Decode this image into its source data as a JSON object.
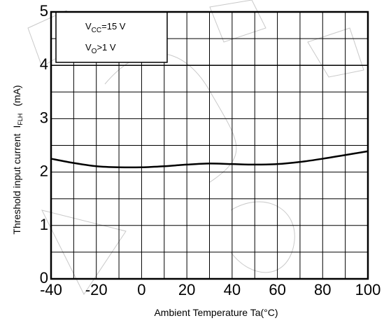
{
  "chart_data": {
    "type": "line",
    "xlabel": "Ambient Temperature Ta(°C)",
    "ylabel_main": "Threshold input current",
    "ylabel_symbol": "IFLH",
    "ylabel_symbol_base": "I",
    "ylabel_symbol_sub": "FLH",
    "ylabel_unit": "(mA)",
    "xlim": [
      -40,
      100
    ],
    "ylim": [
      0,
      5
    ],
    "x_ticks": [
      -40,
      -20,
      0,
      20,
      40,
      60,
      80,
      100
    ],
    "x_tick_labels": [
      "-40",
      "-20",
      "0",
      "20",
      "40",
      "60",
      "80",
      "100"
    ],
    "y_ticks": [
      0,
      1,
      2,
      3,
      4,
      5
    ],
    "y_tick_labels": [
      "0",
      "1",
      "2",
      "3",
      "4",
      "5"
    ],
    "x_grid_step": 10,
    "y_grid_step": 0.5,
    "grid": true,
    "conditions": [
      {
        "text": "VCC=15 V",
        "base": "V",
        "sub": "CC",
        "rest": "=15 V"
      },
      {
        "text": "VO>1 V",
        "base": "V",
        "sub": "O",
        "rest": ">1 V"
      }
    ],
    "series": [
      {
        "x": [
          -40,
          -30,
          -20,
          -10,
          0,
          10,
          20,
          30,
          40,
          50,
          60,
          70,
          80,
          90,
          100
        ],
        "y": [
          2.25,
          2.17,
          2.11,
          2.09,
          2.09,
          2.11,
          2.14,
          2.16,
          2.15,
          2.14,
          2.15,
          2.19,
          2.25,
          2.32,
          2.39
        ]
      }
    ]
  }
}
